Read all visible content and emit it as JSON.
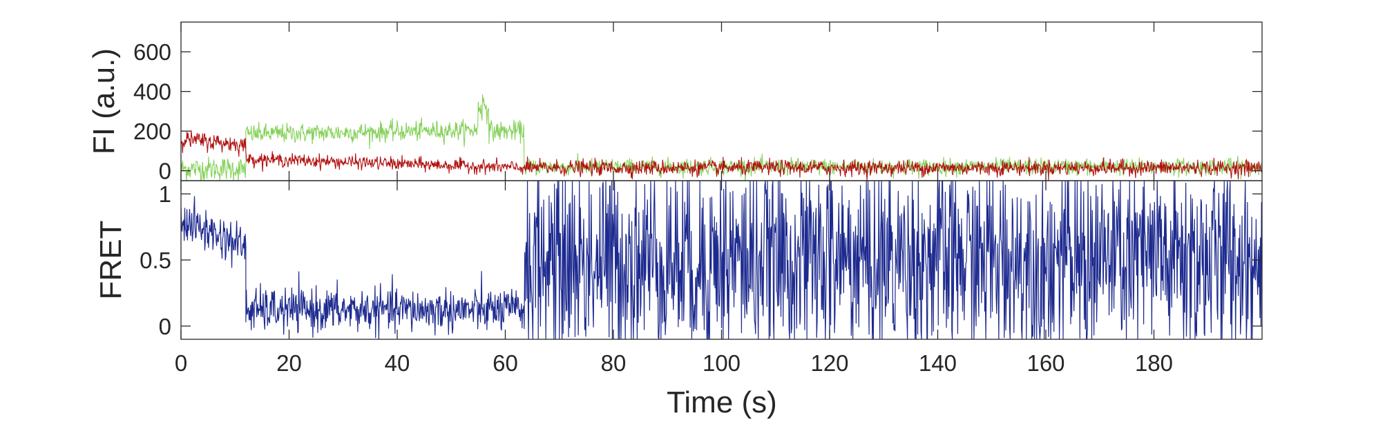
{
  "chart_data": [
    {
      "type": "line",
      "panel": "top",
      "ylabel": "FI (a.u.)",
      "xlim": [
        0,
        200
      ],
      "ylim": [
        -50,
        750
      ],
      "yticks": [
        0,
        200,
        400,
        600
      ],
      "ytick_labels": [
        "0",
        "200",
        "400",
        "600"
      ],
      "grid": false,
      "series": [
        {
          "color": "#85d15a",
          "segments": [
            {
              "x_start": 0,
              "x_end": 12,
              "y_start": 10,
              "y_end": 10,
              "noise": 55
            },
            {
              "x_start": 12,
              "x_end": 55,
              "y_start": 185,
              "y_end": 205,
              "noise": 45
            },
            {
              "x_start": 55,
              "x_end": 57,
              "y_start": 330,
              "y_end": 330,
              "noise": 80
            },
            {
              "x_start": 57,
              "x_end": 63.5,
              "y_start": 200,
              "y_end": 200,
              "noise": 45
            },
            {
              "x_start": 63.5,
              "x_end": 200,
              "y_start": 20,
              "y_end": 20,
              "noise": 38
            }
          ]
        },
        {
          "color": "#b20f0f",
          "segments": [
            {
              "x_start": 0,
              "x_end": 12,
              "y_start": 160,
              "y_end": 130,
              "noise": 40
            },
            {
              "x_start": 12,
              "x_end": 63.5,
              "y_start": 60,
              "y_end": 15,
              "noise": 30
            },
            {
              "x_start": 63.5,
              "x_end": 200,
              "y_start": 15,
              "y_end": 15,
              "noise": 35
            }
          ]
        }
      ]
    },
    {
      "type": "line",
      "panel": "bottom",
      "ylabel": "FRET",
      "xlabel": "Time (s)",
      "xlim": [
        0,
        200
      ],
      "ylim": [
        -0.1,
        1.1
      ],
      "yticks": [
        0,
        0.5,
        1
      ],
      "ytick_labels": [
        "0",
        "0.5",
        "1"
      ],
      "xticks": [
        0,
        20,
        40,
        60,
        80,
        100,
        120,
        140,
        160,
        180
      ],
      "xtick_labels": [
        "0",
        "20",
        "40",
        "60",
        "80",
        "100",
        "120",
        "140",
        "160",
        "180"
      ],
      "grid": false,
      "series": [
        {
          "color": "#1d2a8f",
          "segments": [
            {
              "x_start": 0,
              "x_end": 12,
              "y_start": 0.8,
              "y_end": 0.6,
              "noise": 0.15
            },
            {
              "x_start": 12,
              "x_end": 63.5,
              "y_start": 0.12,
              "y_end": 0.12,
              "noise": 0.15
            },
            {
              "x_start": 63.5,
              "x_end": 200,
              "y_start": 0.5,
              "y_end": 0.5,
              "noise": 0.7
            }
          ]
        }
      ]
    }
  ]
}
